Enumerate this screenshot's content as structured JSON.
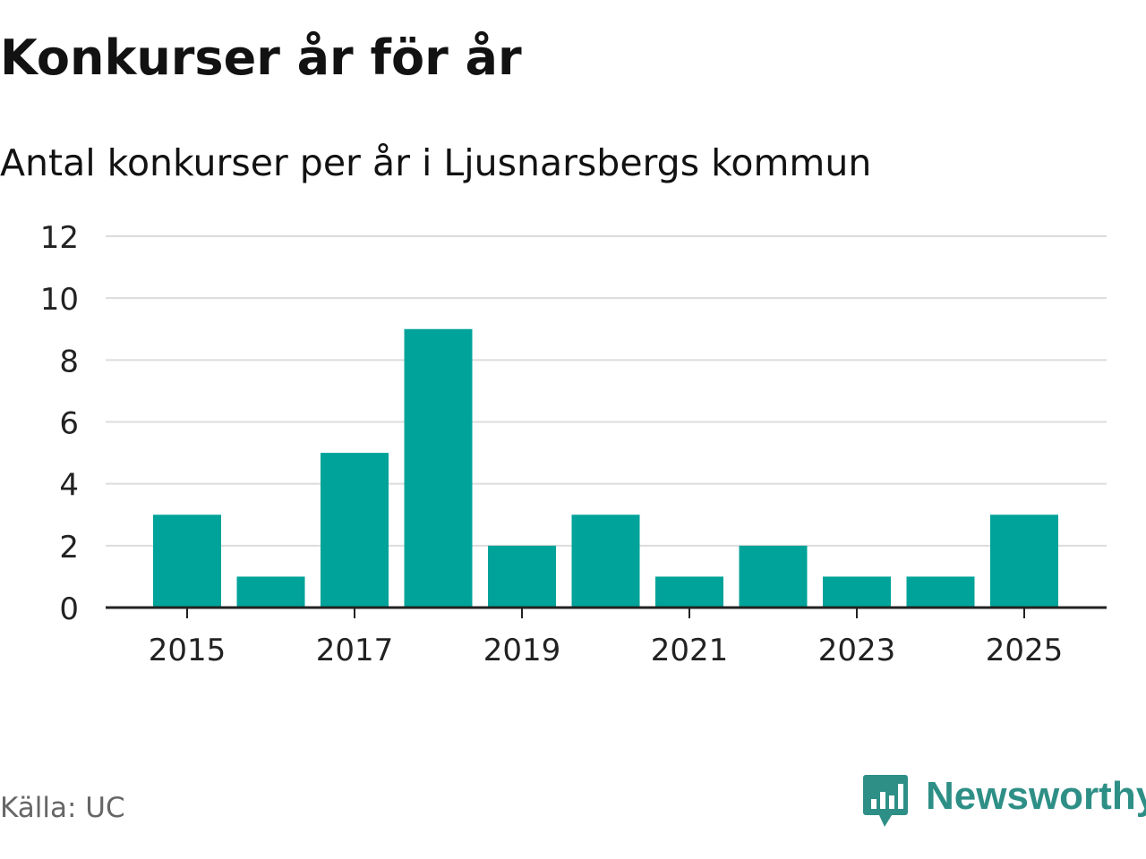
{
  "header": {
    "title": "Konkurser år för år",
    "subtitle": "Antal konkurser per år i Ljusnarsbergs kommun"
  },
  "footer": {
    "source": "Källa: UC",
    "brand": "Newsworthy"
  },
  "colors": {
    "bar": "#00a39a",
    "grid": "#dcdcdc",
    "axis": "#222222",
    "brand": "#2e8f86"
  },
  "icons": {
    "logo": "newsworthy-chart-bubble-icon"
  },
  "chart_data": {
    "type": "bar",
    "title": "Konkurser år för år",
    "subtitle": "Antal konkurser per år i Ljusnarsbergs kommun",
    "xlabel": "",
    "ylabel": "",
    "categories": [
      "2015",
      "2016",
      "2017",
      "2018",
      "2019",
      "2020",
      "2021",
      "2022",
      "2023",
      "2024",
      "2025"
    ],
    "values": [
      3,
      1,
      5,
      9,
      2,
      3,
      1,
      2,
      1,
      1,
      3
    ],
    "x_tick_labels": [
      "2015",
      "2017",
      "2019",
      "2021",
      "2023",
      "2025"
    ],
    "y_ticks": [
      0,
      2,
      4,
      6,
      8,
      10,
      12
    ],
    "ylim": [
      0,
      12
    ],
    "grid": true,
    "legend": "none"
  }
}
